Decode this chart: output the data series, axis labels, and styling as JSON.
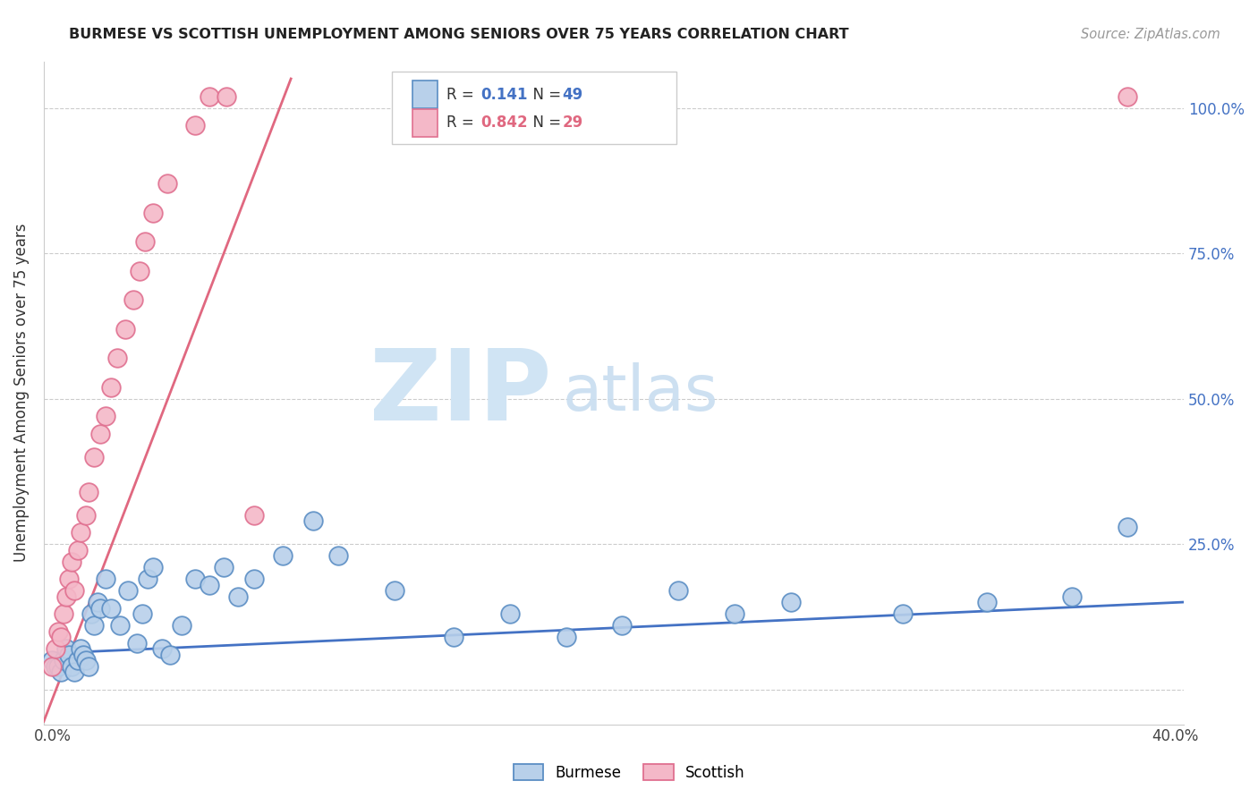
{
  "title": "BURMESE VS SCOTTISH UNEMPLOYMENT AMONG SENIORS OVER 75 YEARS CORRELATION CHART",
  "source": "Source: ZipAtlas.com",
  "ylabel": "Unemployment Among Seniors over 75 years",
  "xlim": [
    -0.003,
    0.403
  ],
  "ylim": [
    -0.06,
    1.08
  ],
  "burmese_color": "#b8d0ea",
  "scottish_color": "#f4b8c8",
  "burmese_edge_color": "#5b8ec4",
  "scottish_edge_color": "#e07090",
  "burmese_line_color": "#4472c4",
  "scottish_line_color": "#e06880",
  "burmese_R": "0.141",
  "burmese_N": "49",
  "scottish_R": "0.842",
  "scottish_N": "29",
  "watermark_ZIP_color": "#d0e4f4",
  "watermark_atlas_color": "#c8ddf0",
  "burmese_x": [
    0.0,
    0.001,
    0.002,
    0.003,
    0.004,
    0.005,
    0.006,
    0.007,
    0.008,
    0.009,
    0.01,
    0.011,
    0.012,
    0.013,
    0.014,
    0.015,
    0.016,
    0.017,
    0.019,
    0.021,
    0.024,
    0.027,
    0.03,
    0.032,
    0.034,
    0.036,
    0.039,
    0.042,
    0.046,
    0.051,
    0.056,
    0.061,
    0.066,
    0.072,
    0.082,
    0.093,
    0.102,
    0.122,
    0.143,
    0.163,
    0.183,
    0.203,
    0.223,
    0.243,
    0.263,
    0.303,
    0.333,
    0.363,
    0.383
  ],
  "burmese_y": [
    0.05,
    0.04,
    0.04,
    0.03,
    0.05,
    0.07,
    0.06,
    0.04,
    0.03,
    0.05,
    0.07,
    0.06,
    0.05,
    0.04,
    0.13,
    0.11,
    0.15,
    0.14,
    0.19,
    0.14,
    0.11,
    0.17,
    0.08,
    0.13,
    0.19,
    0.21,
    0.07,
    0.06,
    0.11,
    0.19,
    0.18,
    0.21,
    0.16,
    0.19,
    0.23,
    0.29,
    0.23,
    0.17,
    0.09,
    0.13,
    0.09,
    0.11,
    0.17,
    0.13,
    0.15,
    0.13,
    0.15,
    0.16,
    0.28
  ],
  "scottish_x": [
    0.0,
    0.001,
    0.002,
    0.003,
    0.004,
    0.005,
    0.006,
    0.007,
    0.008,
    0.009,
    0.01,
    0.012,
    0.013,
    0.015,
    0.017,
    0.019,
    0.021,
    0.023,
    0.026,
    0.029,
    0.031,
    0.033,
    0.036,
    0.041,
    0.051,
    0.056,
    0.062,
    0.072,
    0.383
  ],
  "scottish_y": [
    0.04,
    0.07,
    0.1,
    0.09,
    0.13,
    0.16,
    0.19,
    0.22,
    0.17,
    0.24,
    0.27,
    0.3,
    0.34,
    0.4,
    0.44,
    0.47,
    0.52,
    0.57,
    0.62,
    0.67,
    0.72,
    0.77,
    0.82,
    0.87,
    0.97,
    1.02,
    1.02,
    0.3,
    1.02
  ],
  "burmese_reg": [
    0.0,
    0.403,
    0.062,
    0.15
  ],
  "scottish_reg": [
    -0.003,
    0.085,
    -0.055,
    1.05
  ]
}
